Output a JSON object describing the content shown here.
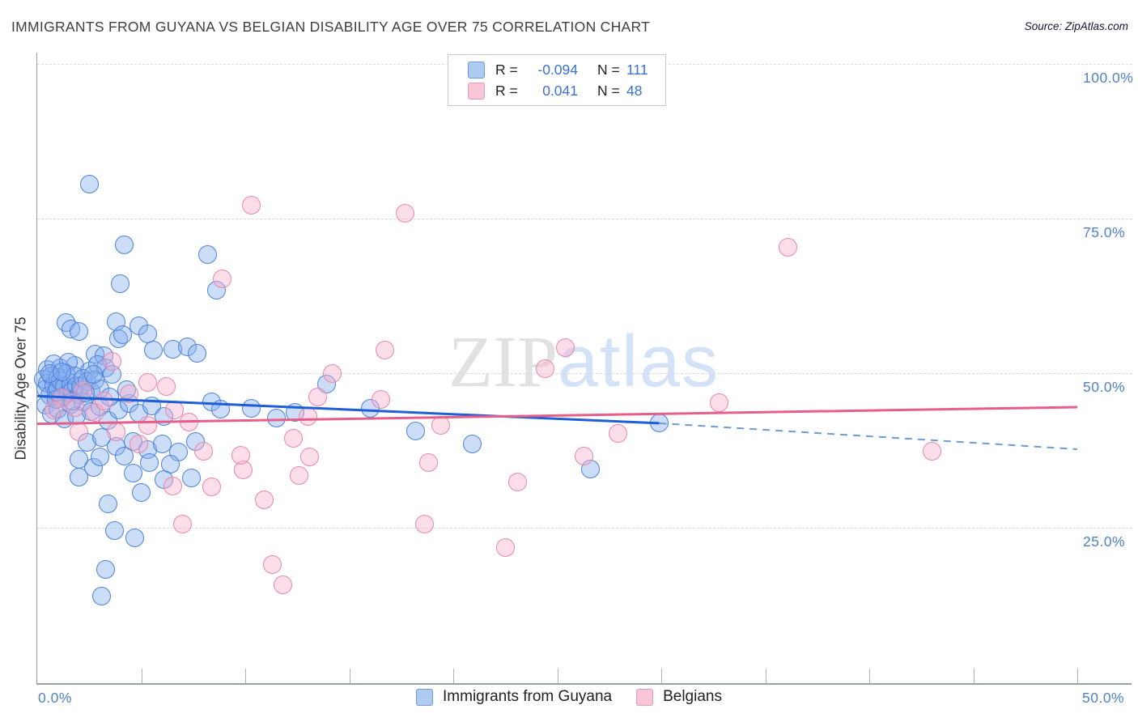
{
  "header": {
    "title": "IMMIGRANTS FROM GUYANA VS BELGIAN DISABILITY AGE OVER 75 CORRELATION CHART",
    "source": "Source: ZipAtlas.com"
  },
  "y_axis": {
    "label": "Disability Age Over 75",
    "tick_labels": [
      "100.0%",
      "75.0%",
      "50.0%",
      "25.0%"
    ],
    "tick_values": [
      100,
      75,
      50,
      25
    ]
  },
  "x_axis": {
    "min_label": "0.0%",
    "max_label": "50.0%",
    "tick_interval_pct": 5,
    "range_pct": [
      0,
      50
    ]
  },
  "legend_box": {
    "rows": [
      {
        "series": "Immigrants from Guyana",
        "r_label": "R =",
        "r_value": "-0.094",
        "n_label": "N =",
        "n_value": "111"
      },
      {
        "series": "Belgians",
        "r_label": "R =",
        "r_value": "0.041",
        "n_label": "N =",
        "n_value": "48"
      }
    ]
  },
  "bottom_legend": {
    "items": [
      {
        "label": "Immigrants from Guyana",
        "series": "blue"
      },
      {
        "label": "Belgians",
        "series": "pink"
      }
    ]
  },
  "watermark": {
    "part1": "ZIP",
    "part2": "atlas"
  },
  "colors": {
    "blue_point_border": "#4c82dd",
    "blue_point_fill": "rgba(133,175,238,0.42)",
    "pink_point_border": "#e887ab",
    "pink_point_fill": "rgba(247,177,204,0.42)",
    "blue_trend": "#1e5ed6",
    "pink_trend": "#e55f8a",
    "blue_trend_dashed": "#6f9bd2",
    "axis_label_blue": "#4f82c9",
    "gridline": "#d9dadc",
    "title_text": "#3c4043"
  },
  "chart_data": {
    "type": "scatter",
    "title": "IMMIGRANTS FROM GUYANA VS BELGIAN DISABILITY AGE OVER 75 CORRELATION CHART",
    "xlabel": "Immigrants from Guyana (%)",
    "ylabel": "Disability Age Over 75",
    "x_range": [
      0,
      50
    ],
    "y_range": [
      0,
      100
    ],
    "x_unit": "%",
    "y_unit": "%",
    "grid": "horizontal-dashed",
    "series": [
      {
        "name": "Immigrants from Guyana",
        "R": -0.094,
        "N": 111,
        "points": [
          [
            2.5,
            80.5
          ],
          [
            4.2,
            70.8
          ],
          [
            8.2,
            69.2
          ],
          [
            8.6,
            63.4
          ],
          [
            4.0,
            64.4
          ],
          [
            1.4,
            58.2
          ],
          [
            1.6,
            57.1
          ],
          [
            2.0,
            56.7
          ],
          [
            3.9,
            55.6
          ],
          [
            3.8,
            58.3
          ],
          [
            4.1,
            56.2
          ],
          [
            4.9,
            57.7
          ],
          [
            5.3,
            56.4
          ],
          [
            5.6,
            53.7
          ],
          [
            6.5,
            53.9
          ],
          [
            7.2,
            54.3
          ],
          [
            7.7,
            53.2
          ],
          [
            2.8,
            53.1
          ],
          [
            3.2,
            52.8
          ],
          [
            0.5,
            50.6
          ],
          [
            1.1,
            50.9
          ],
          [
            1.8,
            51.2
          ],
          [
            2.5,
            50.3
          ],
          [
            3.3,
            50.8
          ],
          [
            0.8,
            51.5
          ],
          [
            1.5,
            51.8
          ],
          [
            2.9,
            51.4
          ],
          [
            0.3,
            49.0
          ],
          [
            0.4,
            47.5
          ],
          [
            0.5,
            48.3
          ],
          [
            0.6,
            46.4
          ],
          [
            0.7,
            49.6
          ],
          [
            0.8,
            48.0
          ],
          [
            0.9,
            46.9
          ],
          [
            1.0,
            49.3
          ],
          [
            1.0,
            47.6
          ],
          [
            1.1,
            48.8
          ],
          [
            1.2,
            46.2
          ],
          [
            1.3,
            47.9
          ],
          [
            1.4,
            49.9
          ],
          [
            1.5,
            46.8
          ],
          [
            1.6,
            48.4
          ],
          [
            1.7,
            47.2
          ],
          [
            1.8,
            49.5
          ],
          [
            1.9,
            48.0
          ],
          [
            2.0,
            46.5
          ],
          [
            2.1,
            47.8
          ],
          [
            2.2,
            49.2
          ],
          [
            2.4,
            48.6
          ],
          [
            2.6,
            47.0
          ],
          [
            2.8,
            48.9
          ],
          [
            3.0,
            47.4
          ],
          [
            3.6,
            49.8
          ],
          [
            0.4,
            44.8
          ],
          [
            0.7,
            43.4
          ],
          [
            1.0,
            44.2
          ],
          [
            1.3,
            42.6
          ],
          [
            1.6,
            44.9
          ],
          [
            1.9,
            43.1
          ],
          [
            2.2,
            45.3
          ],
          [
            2.6,
            43.8
          ],
          [
            3.0,
            44.6
          ],
          [
            3.4,
            42.3
          ],
          [
            3.9,
            44.0
          ],
          [
            4.4,
            45.1
          ],
          [
            4.9,
            43.5
          ],
          [
            5.5,
            44.7
          ],
          [
            6.1,
            43.0
          ],
          [
            8.4,
            45.3
          ],
          [
            8.8,
            44.2
          ],
          [
            2.4,
            38.8
          ],
          [
            3.1,
            39.6
          ],
          [
            3.8,
            38.2
          ],
          [
            4.6,
            39.0
          ],
          [
            5.3,
            37.6
          ],
          [
            6.0,
            38.5
          ],
          [
            6.8,
            37.2
          ],
          [
            7.6,
            38.9
          ],
          [
            2.0,
            36.0
          ],
          [
            2.7,
            34.7
          ],
          [
            6.4,
            35.3
          ],
          [
            7.4,
            33.1
          ],
          [
            2.0,
            33.2
          ],
          [
            3.0,
            36.4
          ],
          [
            4.2,
            36.6
          ],
          [
            4.6,
            33.9
          ],
          [
            5.4,
            35.5
          ],
          [
            6.1,
            32.8
          ],
          [
            3.4,
            28.9
          ],
          [
            3.7,
            24.5
          ],
          [
            4.7,
            23.3
          ],
          [
            3.3,
            18.3
          ],
          [
            3.1,
            14.0
          ],
          [
            5.0,
            30.7
          ],
          [
            10.3,
            44.3
          ],
          [
            11.5,
            42.7
          ],
          [
            12.4,
            43.6
          ],
          [
            13.9,
            48.2
          ],
          [
            16.0,
            44.3
          ],
          [
            18.2,
            40.6
          ],
          [
            20.9,
            38.6
          ],
          [
            26.6,
            34.5
          ],
          [
            29.9,
            42.0
          ],
          [
            0.6,
            49.9
          ],
          [
            0.9,
            45.7
          ],
          [
            1.2,
            50.2
          ],
          [
            1.7,
            45.5
          ],
          [
            2.3,
            46.8
          ],
          [
            2.7,
            49.8
          ],
          [
            3.5,
            46.1
          ],
          [
            4.3,
            47.3
          ]
        ]
      },
      {
        "name": "Belgians",
        "R": 0.041,
        "N": 48,
        "points": [
          [
            10.3,
            77.1
          ],
          [
            17.7,
            75.9
          ],
          [
            36.1,
            70.3
          ],
          [
            8.9,
            65.3
          ],
          [
            16.7,
            53.7
          ],
          [
            25.4,
            54.1
          ],
          [
            24.4,
            50.7
          ],
          [
            14.2,
            49.9
          ],
          [
            32.8,
            45.2
          ],
          [
            13.5,
            46.2
          ],
          [
            16.5,
            45.8
          ],
          [
            19.4,
            41.6
          ],
          [
            27.9,
            40.3
          ],
          [
            26.3,
            36.6
          ],
          [
            43.0,
            37.4
          ],
          [
            12.3,
            39.4
          ],
          [
            13.1,
            36.4
          ],
          [
            12.6,
            33.4
          ],
          [
            18.8,
            35.6
          ],
          [
            23.1,
            32.4
          ],
          [
            18.6,
            25.6
          ],
          [
            22.5,
            21.8
          ],
          [
            10.9,
            29.5
          ],
          [
            11.3,
            19.0
          ],
          [
            11.8,
            15.8
          ],
          [
            7.0,
            25.6
          ],
          [
            6.5,
            31.8
          ],
          [
            8.0,
            37.4
          ],
          [
            8.4,
            31.6
          ],
          [
            9.9,
            34.4
          ],
          [
            9.8,
            36.7
          ],
          [
            3.6,
            51.9
          ],
          [
            5.3,
            48.5
          ],
          [
            2.2,
            47.2
          ],
          [
            1.8,
            44.5
          ],
          [
            2.0,
            40.5
          ],
          [
            5.3,
            41.6
          ],
          [
            3.8,
            40.5
          ],
          [
            4.9,
            38.6
          ],
          [
            6.6,
            44.0
          ],
          [
            7.3,
            42.1
          ],
          [
            6.2,
            47.9
          ],
          [
            13.0,
            43.0
          ],
          [
            2.8,
            43.6
          ],
          [
            1.2,
            46.0
          ],
          [
            4.4,
            46.6
          ],
          [
            3.2,
            45.5
          ],
          [
            0.8,
            44.0
          ]
        ]
      }
    ],
    "trend_lines": [
      {
        "series": "Immigrants from Guyana",
        "style": "solid",
        "from": [
          0,
          46.3
        ],
        "to": [
          29.9,
          41.9
        ]
      },
      {
        "series": "Immigrants from Guyana",
        "style": "dashed",
        "from": [
          29.9,
          41.9
        ],
        "to": [
          50,
          37.7
        ]
      },
      {
        "series": "Belgians",
        "style": "solid",
        "from": [
          0,
          41.8
        ],
        "to": [
          50,
          44.5
        ]
      }
    ],
    "legend_position": "bottom-center"
  }
}
